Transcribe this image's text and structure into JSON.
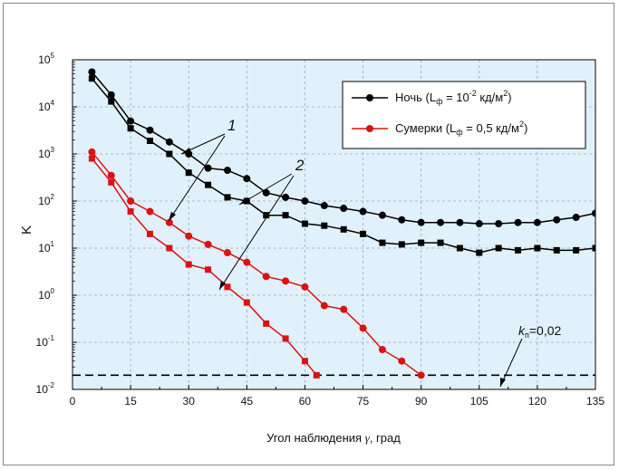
{
  "chart_data": {
    "type": "line",
    "xlabel_prefix": "Угол наблюдения ",
    "xlabel_symbol": "γ",
    "xlabel_suffix": ", град",
    "ylabel": "K",
    "xlim": [
      0,
      135
    ],
    "ylim_log10": [
      -2,
      5
    ],
    "yscale": "log",
    "x_ticks": [
      "0",
      "15",
      "30",
      "45",
      "60",
      "75",
      "90",
      "105",
      "120",
      "135"
    ],
    "y_tick_exponents": [
      "-2",
      "-1",
      "0",
      "1",
      "2",
      "3",
      "4",
      "5"
    ],
    "y_tick_base": "10",
    "grid": true,
    "legend_position": "top-right",
    "legend": [
      {
        "label": "Ночь (L",
        "sub": "ф",
        "rest": " = 10",
        "sup": "-2",
        "unit": " кд/м",
        "sup2": "2",
        "close": ")"
      },
      {
        "label": "Сумерки (L",
        "sub": "ф",
        "rest": " = 0,5 кд/м",
        "sup": "2",
        "unit": "",
        "sup2": "",
        "close": ")"
      }
    ],
    "series": [
      {
        "name": "Ночь",
        "curve": "1",
        "color": "#000000",
        "marker": "circle",
        "x": [
          5,
          10,
          15,
          20,
          25,
          30,
          35,
          40,
          45,
          50,
          55,
          60,
          65,
          70,
          75,
          80,
          85,
          90,
          95,
          100,
          105,
          110,
          115,
          120,
          125,
          130,
          135
        ],
        "y": [
          55000,
          18000,
          5000,
          3200,
          1800,
          1000,
          500,
          450,
          300,
          150,
          120,
          100,
          80,
          70,
          60,
          50,
          40,
          35,
          35,
          35,
          33,
          33,
          35,
          35,
          40,
          45,
          55
        ]
      },
      {
        "name": "Ночь",
        "curve": "2",
        "color": "#000000",
        "marker": "square",
        "x": [
          5,
          10,
          15,
          20,
          25,
          30,
          35,
          40,
          45,
          50,
          55,
          60,
          65,
          70,
          75,
          80,
          85,
          90,
          95,
          100,
          105,
          110,
          115,
          120,
          125,
          130,
          135
        ],
        "y": [
          40000,
          13000,
          3500,
          1900,
          1000,
          400,
          220,
          120,
          100,
          50,
          50,
          33,
          30,
          25,
          20,
          13,
          12,
          13,
          13,
          10,
          8,
          10,
          9,
          10,
          9,
          9,
          10
        ]
      },
      {
        "name": "Сумерки",
        "curve": "1",
        "color": "#dd1111",
        "marker": "circle",
        "x": [
          5,
          10,
          15,
          20,
          25,
          30,
          35,
          40,
          45,
          50,
          55,
          60,
          65,
          70,
          75,
          80,
          85,
          90
        ],
        "y": [
          1100,
          350,
          100,
          60,
          35,
          18,
          12,
          8,
          5,
          2.5,
          2,
          1.5,
          0.6,
          0.5,
          0.2,
          0.07,
          0.04,
          0.02
        ]
      },
      {
        "name": "Сумерки",
        "curve": "2",
        "color": "#dd1111",
        "marker": "square",
        "x": [
          5,
          10,
          15,
          20,
          25,
          30,
          35,
          40,
          45,
          50,
          55,
          60,
          63
        ],
        "y": [
          800,
          250,
          60,
          20,
          10,
          4.5,
          3.5,
          1.5,
          0.7,
          0.25,
          0.12,
          0.04,
          0.02
        ]
      }
    ],
    "annotations": {
      "label1": "1",
      "label2": "2",
      "kn_prefix": "k",
      "kn_sub": "п",
      "kn_value": "=0,02",
      "threshold_y": 0.02
    }
  }
}
